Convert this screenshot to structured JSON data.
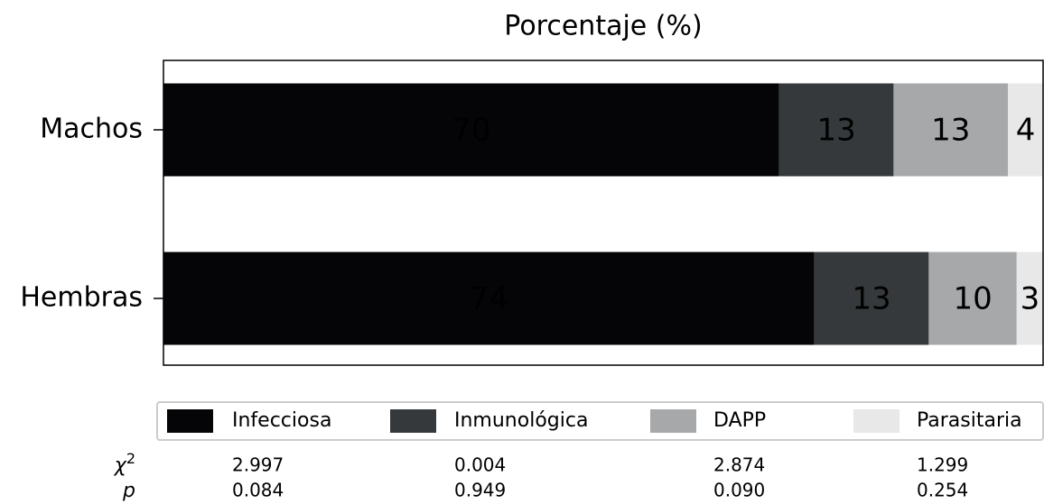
{
  "chart_data": {
    "type": "stacked_barh",
    "title": "Porcentaje (%)",
    "categories": [
      "Machos",
      "Hembras"
    ],
    "series": [
      {
        "name": "Infecciosa",
        "color": "#050507",
        "values": [
          70,
          74
        ]
      },
      {
        "name": "Inmunológica",
        "color": "#36393b",
        "values": [
          13,
          13
        ]
      },
      {
        "name": "DAPP",
        "color": "#a6a8a9",
        "values": [
          13,
          10
        ]
      },
      {
        "name": "Parasitaria",
        "color": "#e8e8e8",
        "values": [
          4,
          3
        ]
      }
    ],
    "xlim": [
      0,
      100
    ],
    "stats": [
      {
        "label": "χ",
        "sup": "2",
        "values": [
          "2.997",
          "0.004",
          "2.874",
          "1.299"
        ]
      },
      {
        "label": "p",
        "values": [
          "0.084",
          "0.949",
          "0.090",
          "0.254"
        ]
      }
    ]
  }
}
